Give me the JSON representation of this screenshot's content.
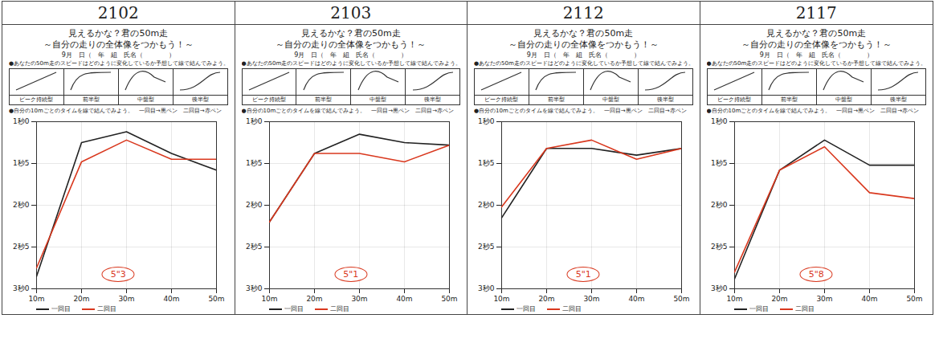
{
  "chart_data": [
    {
      "type": "line",
      "title": "2102",
      "subtitle": "見えるかな？君の50m走",
      "annotations": {
        "tagline": "～自分の走りの全体像をつかもう！～",
        "date": "9月　日（　年　組　氏名（　　　　）",
        "prompt": "●あなたの50m走のスピードはどのように変化しているか予想して線で結んでみよう。",
        "patterns": [
          "ピーク持続型",
          "前半型",
          "中盤型",
          "後半型"
        ],
        "instruction": "●自分の10mごとのタイムを線で結んでみよう。　一回目→黒ペン　二回目→赤ペン",
        "result": "5\"3"
      },
      "categories": [
        "10m",
        "20m",
        "30m",
        "40m",
        "50m"
      ],
      "series": [
        {
          "name": "一回目",
          "color": "#222222",
          "values": [
            2.85,
            1.25,
            1.12,
            1.38,
            1.58
          ]
        },
        {
          "name": "二回目",
          "color": "#d9381e",
          "values": [
            2.75,
            1.48,
            1.22,
            1.45,
            1.45
          ]
        }
      ],
      "ylim": [
        1,
        3
      ],
      "yticks": [
        {
          "value": 1,
          "label": "1秒0"
        },
        {
          "value": 1.5,
          "label": "1秒5"
        },
        {
          "value": 2,
          "label": "2秒0"
        },
        {
          "value": 2.5,
          "label": "2秒5"
        },
        {
          "value": 3,
          "label": "3秒0"
        }
      ],
      "grid": true,
      "legend": "bottom"
    },
    {
      "type": "line",
      "title": "2103",
      "subtitle": "見えるかな？君の50m走",
      "annotations": {
        "tagline": "～自分の走りの全体像をつかもう！～",
        "date": "9月　日（　年　組　氏名（　　　　）",
        "prompt": "●あなたの50m走のスピードはどのように変化しているか予想して線で結んでみよう。",
        "patterns": [
          "ピーク持続型",
          "前半型",
          "中盤型",
          "後半型"
        ],
        "instruction": "●自分の10mごとのタイムを線で結んでみよう。　一回目→黒ペン　二回目→赤ペン",
        "result": "5\"1"
      },
      "categories": [
        "10m",
        "20m",
        "30m",
        "40m",
        "50m"
      ],
      "series": [
        {
          "name": "一回目",
          "color": "#222222",
          "values": [
            2.2,
            1.38,
            1.15,
            1.25,
            1.28
          ]
        },
        {
          "name": "二回目",
          "color": "#d9381e",
          "values": [
            2.2,
            1.38,
            1.38,
            1.48,
            1.28
          ]
        }
      ],
      "ylim": [
        1,
        3
      ],
      "yticks": [
        {
          "value": 1,
          "label": "1秒0"
        },
        {
          "value": 1.5,
          "label": "1秒5"
        },
        {
          "value": 2,
          "label": "2秒0"
        },
        {
          "value": 2.5,
          "label": "2秒5"
        },
        {
          "value": 3,
          "label": "3秒0"
        }
      ],
      "grid": true,
      "legend": "bottom"
    },
    {
      "type": "line",
      "title": "2112",
      "subtitle": "見えるかな？君の50m走",
      "annotations": {
        "tagline": "～自分の走りの全体像をつかもう！～",
        "date": "9月　日（　年　組　氏名（　　　　）",
        "prompt": "●あなたの50m走のスピードはどのように変化しているか予想して線で結んでみよう。",
        "patterns": [
          "ピーク持続型",
          "前半型",
          "中盤型",
          "後半型"
        ],
        "instruction": "●自分の10mごとのタイムを線で結んでみよう。　一回目→黒ペン　二回目→赤ペン",
        "result": "5\"1"
      },
      "categories": [
        "10m",
        "20m",
        "30m",
        "40m",
        "50m"
      ],
      "series": [
        {
          "name": "一回目",
          "color": "#222222",
          "values": [
            2.15,
            1.32,
            1.32,
            1.4,
            1.32
          ]
        },
        {
          "name": "二回目",
          "color": "#d9381e",
          "values": [
            2.02,
            1.32,
            1.22,
            1.45,
            1.32
          ]
        }
      ],
      "ylim": [
        1,
        3
      ],
      "yticks": [
        {
          "value": 1,
          "label": "1秒0"
        },
        {
          "value": 1.5,
          "label": "1秒5"
        },
        {
          "value": 2,
          "label": "2秒0"
        },
        {
          "value": 2.5,
          "label": "2秒5"
        },
        {
          "value": 3,
          "label": "3秒0"
        }
      ],
      "grid": true,
      "legend": "bottom"
    },
    {
      "type": "line",
      "title": "2117",
      "subtitle": "見えるかな？君の50m走",
      "annotations": {
        "tagline": "～自分の走りの全体像をつかもう！～",
        "date": "9月　日（　年　組　氏名（　　　　）",
        "prompt": "●あなたの50m走のスピードはどのように変化しているか予想して線で結んでみよう。",
        "patterns": [
          "ピーク持続型",
          "前半型",
          "中盤型",
          "後半型"
        ],
        "instruction": "●自分の10mごとのタイムを線で結んでみよう。　一回目→黒ペン　二回目→赤ペン",
        "result": "5\"8"
      },
      "categories": [
        "10m",
        "20m",
        "30m",
        "40m",
        "50m"
      ],
      "series": [
        {
          "name": "一回目",
          "color": "#222222",
          "values": [
            2.88,
            1.58,
            1.22,
            1.52,
            1.52
          ]
        },
        {
          "name": "二回目",
          "color": "#d9381e",
          "values": [
            2.8,
            1.58,
            1.3,
            1.85,
            1.92
          ]
        }
      ],
      "ylim": [
        1,
        3
      ],
      "yticks": [
        {
          "value": 1,
          "label": "1秒0"
        },
        {
          "value": 1.5,
          "label": "1秒5"
        },
        {
          "value": 2,
          "label": "2秒0"
        },
        {
          "value": 2.5,
          "label": "2秒5"
        },
        {
          "value": 3,
          "label": "3秒0"
        }
      ],
      "grid": true,
      "legend": "bottom"
    }
  ]
}
